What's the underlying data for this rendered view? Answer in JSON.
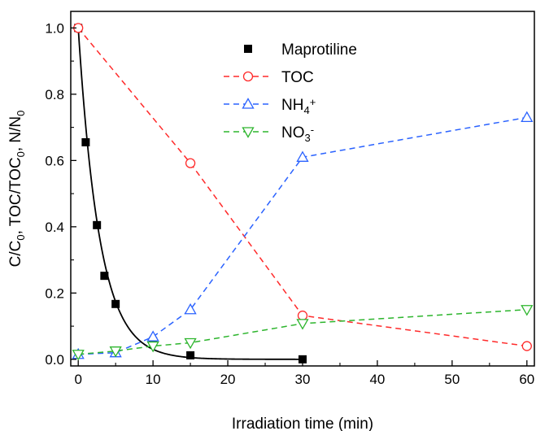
{
  "chart_data": {
    "type": "scatter",
    "xlabel": "Irradiation time (min)",
    "ylabel": {
      "parts": [
        {
          "t": "C/C"
        },
        {
          "t": "0",
          "sub": true
        },
        {
          "t": ", TOC/TOC"
        },
        {
          "t": "0",
          "sub": true
        },
        {
          "t": ", N/N"
        },
        {
          "t": "0",
          "sub": true
        }
      ]
    },
    "xlim": [
      -1,
      61
    ],
    "ylim": [
      -0.02,
      1.05
    ],
    "xticks": [
      0,
      10,
      20,
      30,
      40,
      50,
      60
    ],
    "yticks": [
      0.0,
      0.2,
      0.4,
      0.6,
      0.8,
      1.0
    ],
    "xtick_labels": [
      "0",
      "10",
      "20",
      "30",
      "40",
      "50",
      "60"
    ],
    "ytick_labels": [
      "0.0",
      "0.2",
      "0.4",
      "0.6",
      "0.8",
      "1.0"
    ],
    "grid": false,
    "legend_position": "top-right",
    "series": [
      {
        "name": {
          "parts": [
            {
              "t": "Maprotiline"
            }
          ]
        },
        "marker": "filled-square",
        "line": "none",
        "color": "#000000",
        "x": [
          0,
          1,
          2.5,
          3.5,
          5,
          10,
          15,
          30
        ],
        "y": [
          1.0,
          0.655,
          0.405,
          0.252,
          0.167,
          0.055,
          0.012,
          0.0
        ]
      },
      {
        "name": {
          "parts": [
            {
              "t": "Maprotiline fit"
            }
          ]
        },
        "legend": false,
        "marker": "none",
        "line": "solid",
        "color": "#000000",
        "fit": {
          "kind": "exponential",
          "a": 1.0,
          "k": 0.35,
          "x_range": [
            0,
            30
          ]
        }
      },
      {
        "name": {
          "parts": [
            {
              "t": "TOC"
            }
          ]
        },
        "marker": "open-circle",
        "line": "dashed",
        "color": "#ff2a2a",
        "x": [
          0,
          15,
          30,
          60
        ],
        "y": [
          1.0,
          0.592,
          0.132,
          0.04
        ]
      },
      {
        "name": {
          "parts": [
            {
              "t": "NH"
            },
            {
              "t": "4",
              "sub": true
            },
            {
              "t": "+",
              "sup": true
            }
          ]
        },
        "marker": "open-triangle-up",
        "line": "dashed",
        "color": "#2a62ff",
        "x": [
          0,
          5,
          10,
          15,
          30,
          60
        ],
        "y": [
          0.015,
          0.02,
          0.068,
          0.15,
          0.61,
          0.73
        ]
      },
      {
        "name": {
          "parts": [
            {
              "t": "NO"
            },
            {
              "t": "3",
              "sub": true
            },
            {
              "t": "-",
              "sup": true
            }
          ]
        },
        "marker": "open-triangle-down",
        "line": "dashed",
        "color": "#2db52d",
        "x": [
          0,
          5,
          10,
          15,
          30,
          60
        ],
        "y": [
          0.015,
          0.025,
          0.04,
          0.05,
          0.108,
          0.15
        ]
      }
    ]
  }
}
